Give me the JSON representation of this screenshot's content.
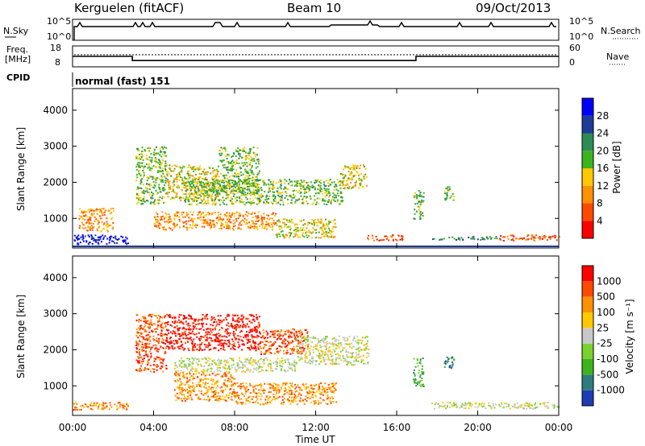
{
  "header": {
    "site": "Kerguelen (fitACF)",
    "beam": "Beam 10",
    "date": "09/Oct/2013"
  },
  "strip_panels": {
    "nsky": {
      "label": "N.Sky",
      "ticks": [
        "10^5",
        "10^0"
      ]
    },
    "nsearch": {
      "label": "N.Search",
      "ticks": [
        "10^5",
        "10^0"
      ]
    },
    "freq": {
      "label_top": "Freq.",
      "label_bottom": "[MHz]",
      "ticks": [
        "18",
        "8"
      ],
      "series": [
        {
          "t": 0,
          "f": 13
        },
        {
          "t": 2.95,
          "f": 13
        },
        {
          "t": 2.95,
          "f": 11
        },
        {
          "t": 16.95,
          "f": 11
        },
        {
          "t": 16.95,
          "f": 13
        },
        {
          "t": 24,
          "f": 13
        }
      ]
    },
    "nave": {
      "label": "Nave",
      "ticks": [
        "60",
        "0"
      ]
    },
    "cpid": {
      "label": "CPID",
      "text": "normal (fast) 151"
    }
  },
  "chart_data": [
    {
      "type": "heatmap",
      "name": "power",
      "xlabel": "Time UT",
      "ylabel": "Slant Range [km]",
      "xlim": [
        0,
        24
      ],
      "ylim": [
        180,
        4600
      ],
      "x_ticks": [
        "00:00",
        "04:00",
        "08:00",
        "12:00",
        "16:00",
        "20:00",
        "00:00"
      ],
      "y_ticks": [
        "1000",
        "2000",
        "3000",
        "4000"
      ],
      "colorbar": {
        "label": "Power [dB]",
        "ticks": [
          "28",
          "24",
          "20",
          "16",
          "12",
          "8",
          "4"
        ],
        "colors": [
          "#ff0000",
          "#ff4a00",
          "#ff9000",
          "#ffc800",
          "#3cb41e",
          "#2e8b57",
          "#1e3c96",
          "#0000ff"
        ]
      },
      "scatter_regions": [
        {
          "t0": 0.0,
          "t1": 2.8,
          "r0": 300,
          "r1": 560,
          "level": 7
        },
        {
          "t0": 0.3,
          "t1": 2.0,
          "r0": 650,
          "r1": 1300,
          "level": 2
        },
        {
          "t0": 3.1,
          "t1": 4.6,
          "r0": 1400,
          "r1": 3000,
          "level": 4
        },
        {
          "t0": 4.6,
          "t1": 7.2,
          "r0": 1500,
          "r1": 2500,
          "level": 3
        },
        {
          "t0": 7.2,
          "t1": 9.2,
          "r0": 1700,
          "r1": 3000,
          "level": 4
        },
        {
          "t0": 5.5,
          "t1": 13.3,
          "r0": 1400,
          "r1": 2100,
          "level": 4
        },
        {
          "t0": 4.0,
          "t1": 10.0,
          "r0": 700,
          "r1": 1200,
          "level": 2
        },
        {
          "t0": 10.0,
          "t1": 13.0,
          "r0": 480,
          "r1": 1000,
          "level": 3
        },
        {
          "t0": 13.2,
          "t1": 14.5,
          "r0": 1850,
          "r1": 2500,
          "level": 3
        },
        {
          "t0": 14.5,
          "t1": 16.3,
          "r0": 400,
          "r1": 560,
          "level": 1
        },
        {
          "t0": 16.8,
          "t1": 17.3,
          "r0": 1000,
          "r1": 1800,
          "level": 4
        },
        {
          "t0": 18.3,
          "t1": 18.8,
          "r0": 1500,
          "r1": 1900,
          "level": 4
        },
        {
          "t0": 17.7,
          "t1": 21.0,
          "r0": 420,
          "r1": 520,
          "level": 5
        },
        {
          "t0": 21.0,
          "t1": 24.0,
          "r0": 400,
          "r1": 560,
          "level": 1
        }
      ]
    },
    {
      "type": "heatmap",
      "name": "velocity",
      "xlabel": "Time UT",
      "ylabel": "Slant Range [km]",
      "xlim": [
        0,
        24
      ],
      "ylim": [
        180,
        4600
      ],
      "x_ticks": [
        "00:00",
        "04:00",
        "08:00",
        "12:00",
        "16:00",
        "20:00",
        "00:00"
      ],
      "y_ticks": [
        "1000",
        "2000",
        "3000",
        "4000"
      ],
      "colorbar": {
        "label": "Velocity [m s⁻¹]",
        "ticks": [
          "1000",
          "500",
          "100",
          "25",
          "-25",
          "-100",
          "-500",
          "-1000"
        ],
        "colors": [
          "#1e3cb4",
          "#2e7d7d",
          "#3cb41e",
          "#7ad22e",
          "#c8c8c8",
          "#ffc800",
          "#ff9000",
          "#ff4a00",
          "#ff0000"
        ]
      },
      "scatter_regions": [
        {
          "t0": 0.0,
          "t1": 2.8,
          "r0": 350,
          "r1": 560,
          "level": 6
        },
        {
          "t0": 3.1,
          "t1": 4.6,
          "r0": 1400,
          "r1": 3000,
          "level": 7
        },
        {
          "t0": 4.6,
          "t1": 9.2,
          "r0": 2000,
          "r1": 3000,
          "level": 8
        },
        {
          "t0": 9.2,
          "t1": 11.6,
          "r0": 1900,
          "r1": 2600,
          "level": 7
        },
        {
          "t0": 5.0,
          "t1": 11.0,
          "r0": 1400,
          "r1": 1800,
          "level": 4
        },
        {
          "t0": 11.0,
          "t1": 14.6,
          "r0": 1600,
          "r1": 2400,
          "level": 4
        },
        {
          "t0": 5.0,
          "t1": 8.0,
          "r0": 600,
          "r1": 1400,
          "level": 6
        },
        {
          "t0": 8.0,
          "t1": 13.0,
          "r0": 500,
          "r1": 1100,
          "level": 6
        },
        {
          "t0": 16.8,
          "t1": 17.3,
          "r0": 1000,
          "r1": 1800,
          "level": 2
        },
        {
          "t0": 18.3,
          "t1": 18.8,
          "r0": 1500,
          "r1": 1900,
          "level": 1
        },
        {
          "t0": 17.7,
          "t1": 24.0,
          "r0": 380,
          "r1": 560,
          "level": 4
        }
      ]
    }
  ]
}
